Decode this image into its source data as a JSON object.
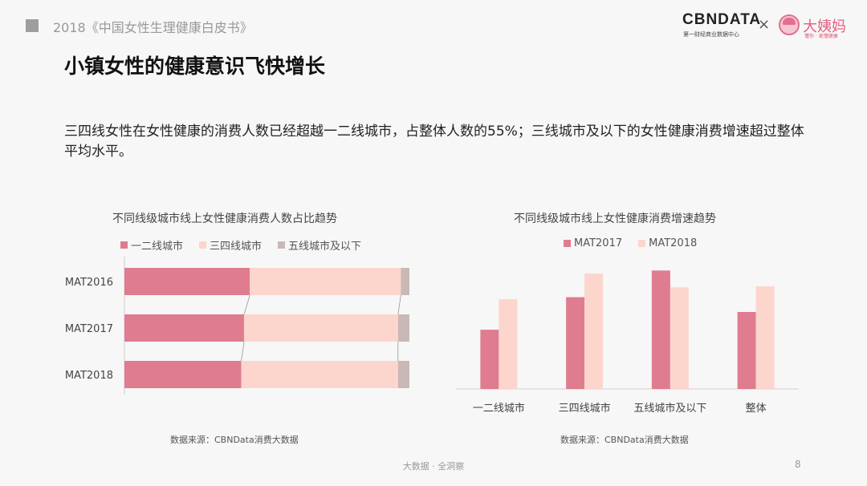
{
  "header": {
    "report_title": "2018《中国女性生理健康白皮书》",
    "logo_left": "CBNDATA",
    "logo_left_sub": "第一财经商业数据中心",
    "logo_sep": "×",
    "logo_right": "大姨妈",
    "logo_right_sub": "懂你 · 更懂健康"
  },
  "slide": {
    "title": "小镇女性的健康意识飞快增长",
    "description": "三四线女性在女性健康的消费人数已经超越一二线城市，占整体人数的55%；三线城市及以下的女性健康消费增速超过整体平均水平。"
  },
  "colors": {
    "dark_pink": "#df7c90",
    "light_pink": "#fcd6cd",
    "gray": "#c8b9b6"
  },
  "chart_data": [
    {
      "type": "bar",
      "orientation": "horizontal",
      "stacked": "percent",
      "title": "不同线级城市线上女性健康消费人数占比趋势",
      "categories": [
        "MAT2016",
        "MAT2017",
        "MAT2018"
      ],
      "series": [
        {
          "name": "一二线城市",
          "values": [
            44,
            42,
            41
          ]
        },
        {
          "name": "三四线城市",
          "values": [
            53,
            54,
            55
          ]
        },
        {
          "name": "五线城市及以下",
          "values": [
            3,
            4,
            4
          ]
        }
      ],
      "legend_position": "top",
      "source": "数据来源：CBNData消费大数据"
    },
    {
      "type": "bar",
      "title": "不同线级城市线上女性健康消费增速趋势",
      "categories": [
        "一二线城市",
        "三四线城市",
        "五线城市及以下",
        "整体"
      ],
      "series": [
        {
          "name": "MAT2017",
          "values": [
            60,
            93,
            120,
            78
          ]
        },
        {
          "name": "MAT2018",
          "values": [
            91,
            117,
            103,
            104
          ]
        }
      ],
      "ylim": [
        0,
        130
      ],
      "y_axis_shown": false,
      "legend_position": "top",
      "source": "数据来源：CBNData消费大数据"
    }
  ],
  "footer": {
    "text": "大数据 · 全洞察",
    "page_number": "8"
  }
}
